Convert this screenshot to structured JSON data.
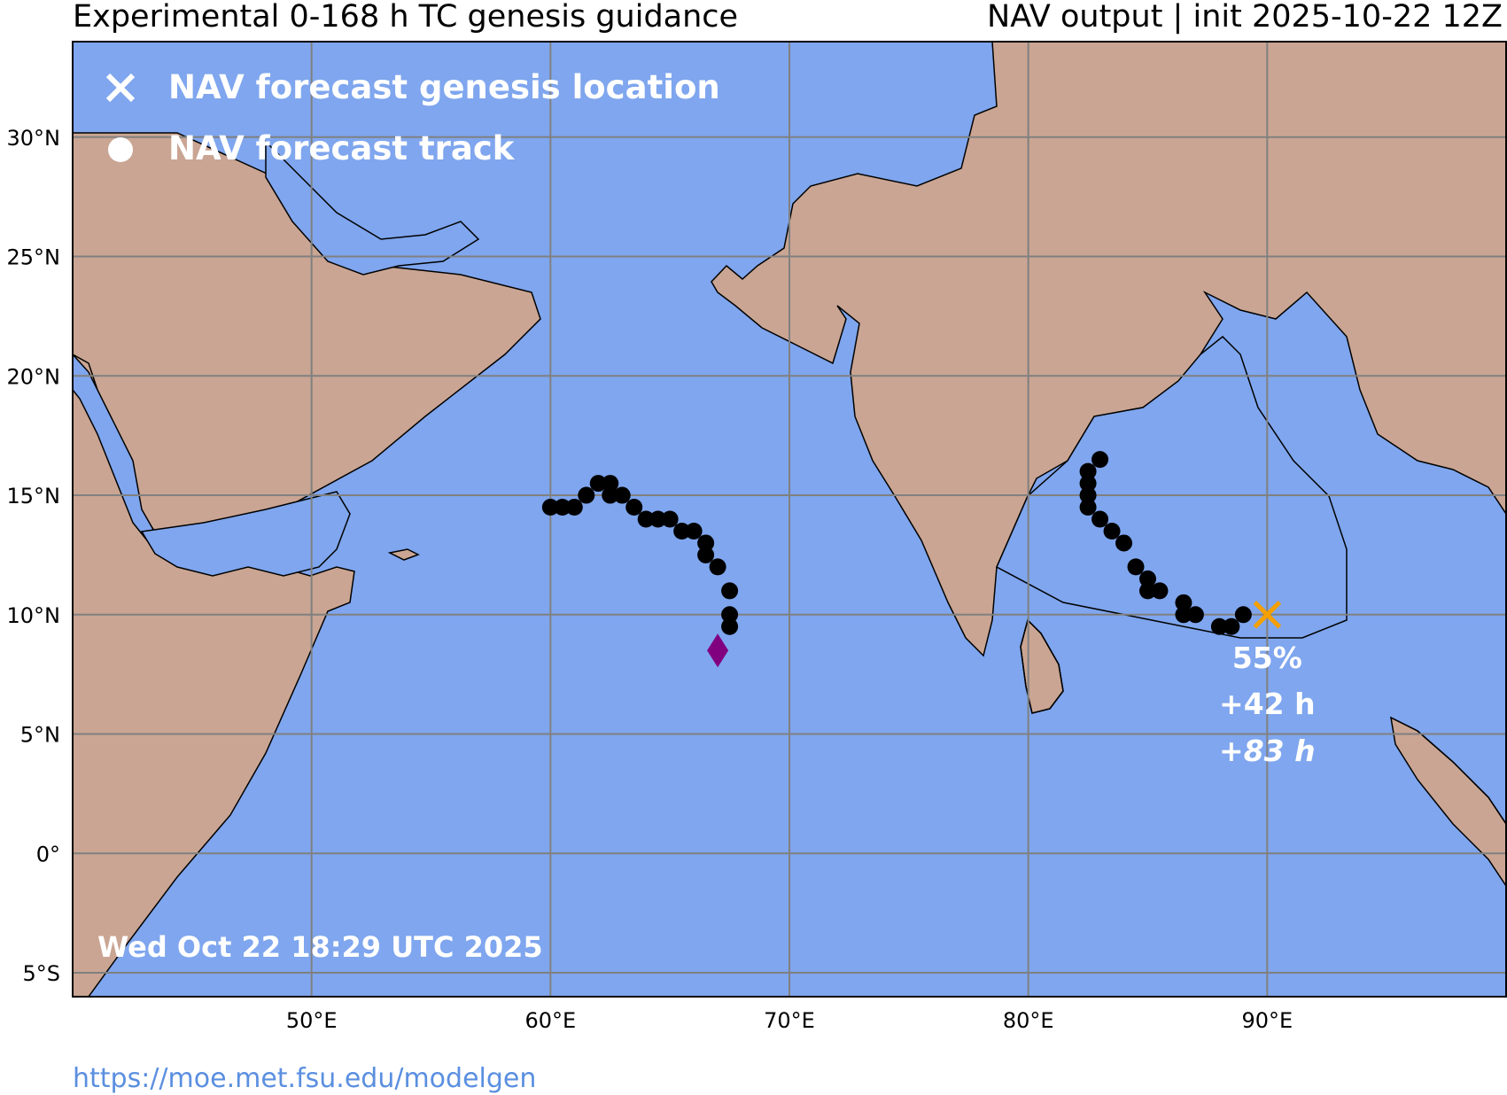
{
  "header": {
    "title_left": "Experimental 0-168 h TC genesis guidance",
    "title_right": "NAV output | init 2025-10-22 12Z"
  },
  "legend": {
    "genesis_label": "NAV forecast genesis location",
    "track_label": "NAV forecast track"
  },
  "timestamp": "Wed Oct 22 18:29 UTC 2025",
  "footer_url": "https://moe.met.fsu.edu/modelgen",
  "axes": {
    "lon_range": [
      40,
      100
    ],
    "lat_range": [
      -6,
      34
    ],
    "lon_ticks": [
      {
        "value": 50,
        "label": "50°E"
      },
      {
        "value": 60,
        "label": "60°E"
      },
      {
        "value": 70,
        "label": "70°E"
      },
      {
        "value": 80,
        "label": "80°E"
      },
      {
        "value": 90,
        "label": "90°E"
      }
    ],
    "lat_ticks": [
      {
        "value": 30,
        "label": "30°N"
      },
      {
        "value": 25,
        "label": "25°N"
      },
      {
        "value": 20,
        "label": "20°N"
      },
      {
        "value": 15,
        "label": "15°N"
      },
      {
        "value": 10,
        "label": "10°N"
      },
      {
        "value": 5,
        "label": "5°N"
      },
      {
        "value": 0,
        "label": "0°"
      },
      {
        "value": -5,
        "label": "5°S"
      }
    ]
  },
  "colors": {
    "ocean": "#7fa6ee",
    "land": "#caa593",
    "grid": "#808080",
    "track": "#000000",
    "genesis_marker": "#f5a000",
    "diamond": "#800080",
    "legend_text": "#ffffff"
  },
  "genesis": {
    "lon": 90.0,
    "lat": 10.0,
    "probability": "55%",
    "lead_time": "+42 h",
    "lead_time_2": "+83 h"
  },
  "storm_marker": {
    "lon": 67.0,
    "lat": 8.5,
    "shape": "diamond"
  },
  "tracks": [
    {
      "points": [
        [
          89.0,
          10.0
        ],
        [
          88.5,
          9.5
        ],
        [
          88.0,
          9.5
        ],
        [
          87.0,
          10.0
        ],
        [
          86.5,
          10.0
        ],
        [
          86.5,
          10.5
        ],
        [
          85.5,
          11.0
        ],
        [
          85.0,
          11.0
        ],
        [
          85.0,
          11.5
        ],
        [
          84.5,
          12.0
        ],
        [
          84.0,
          13.0
        ],
        [
          83.5,
          13.5
        ],
        [
          83.0,
          14.0
        ],
        [
          82.5,
          14.5
        ],
        [
          82.5,
          15.0
        ],
        [
          82.5,
          15.5
        ],
        [
          82.5,
          16.0
        ],
        [
          83.0,
          16.5
        ]
      ]
    },
    {
      "points": [
        [
          67.5,
          9.5
        ],
        [
          67.5,
          10.0
        ],
        [
          67.5,
          11.0
        ],
        [
          67.0,
          12.0
        ],
        [
          66.5,
          12.5
        ],
        [
          66.5,
          13.0
        ],
        [
          66.0,
          13.5
        ],
        [
          65.5,
          13.5
        ],
        [
          65.0,
          14.0
        ],
        [
          64.5,
          14.0
        ],
        [
          64.0,
          14.0
        ],
        [
          63.5,
          14.5
        ],
        [
          63.0,
          15.0
        ],
        [
          62.5,
          15.0
        ],
        [
          62.5,
          15.5
        ],
        [
          62.0,
          15.5
        ],
        [
          61.5,
          15.0
        ],
        [
          61.0,
          14.5
        ],
        [
          60.5,
          14.5
        ],
        [
          60.0,
          14.5
        ]
      ]
    }
  ]
}
